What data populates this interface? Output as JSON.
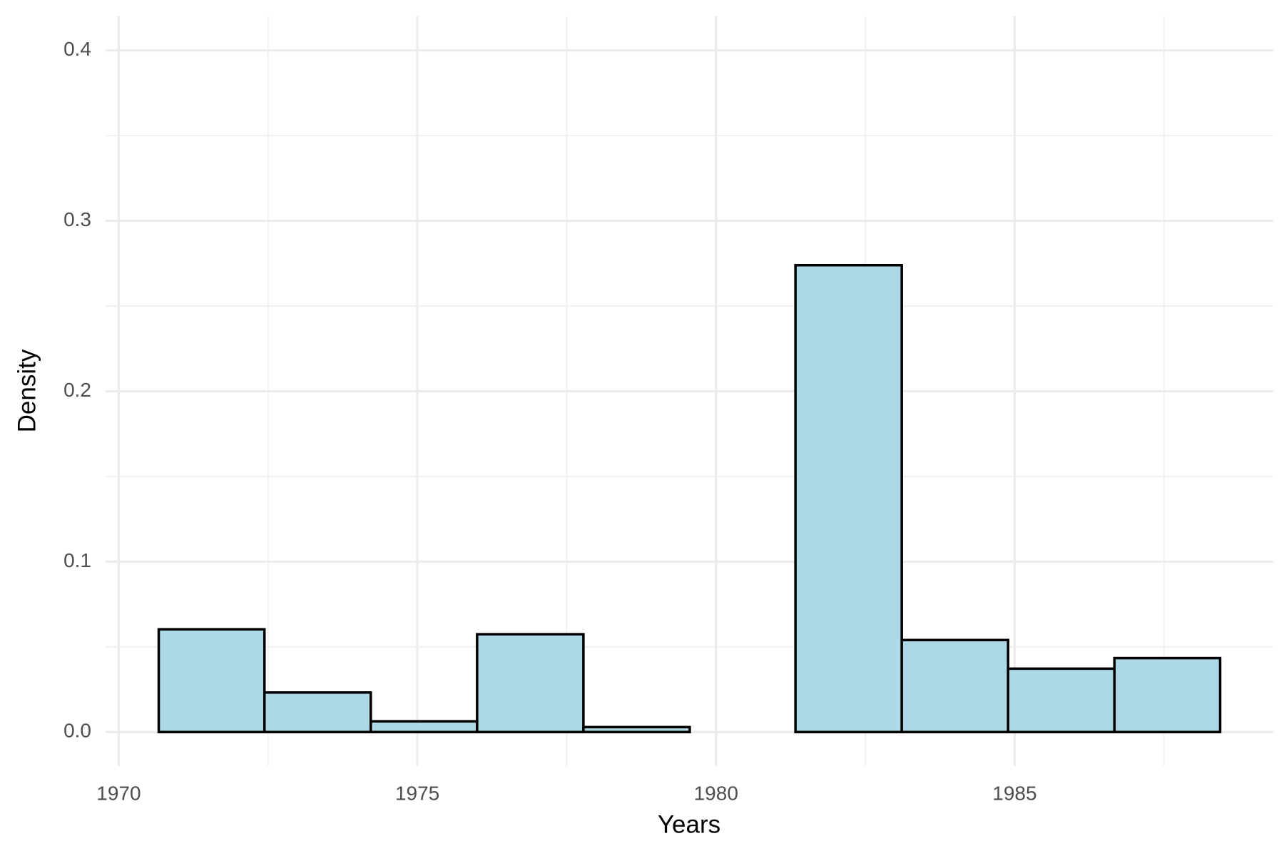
{
  "chart_data": {
    "type": "histogram",
    "x_label": "Years",
    "y_label": "Density",
    "bins": [
      1970.67,
      1972.44,
      1974.22,
      1976.0,
      1977.78,
      1979.56,
      1981.33,
      1983.11,
      1984.89,
      1986.67,
      1988.44
    ],
    "values": [
      0.0603,
      0.0232,
      0.0063,
      0.0574,
      0.0029,
      0,
      0.274,
      0.054,
      0.0372,
      0.0434
    ],
    "color": "#add8e6",
    "edge_color": "#000000",
    "xlim": [
      1969.78,
      1989.33
    ],
    "xticks": [
      1970,
      1975,
      1980,
      1985
    ],
    "ylim": [
      -0.02,
      0.42
    ],
    "yticks": [
      0.0,
      0.1,
      0.2,
      0.3,
      0.4
    ],
    "grid": true
  }
}
